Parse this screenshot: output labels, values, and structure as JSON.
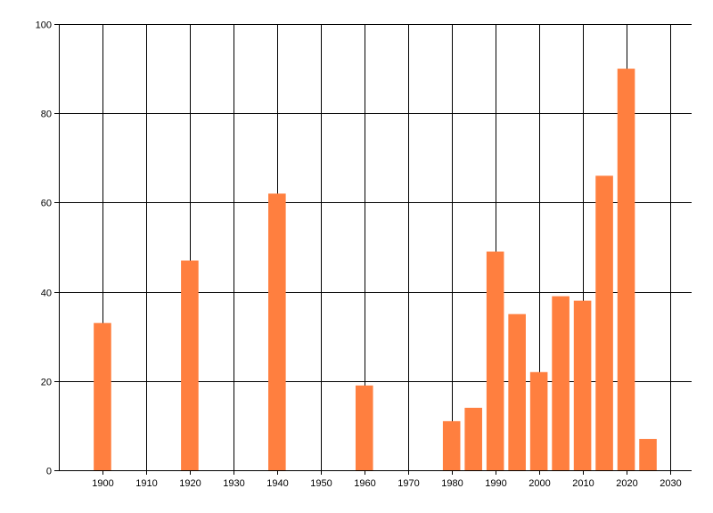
{
  "chart_data": {
    "type": "bar",
    "x": [
      1900,
      1920,
      1940,
      1960,
      1980,
      1985,
      1990,
      1995,
      2000,
      2005,
      2010,
      2015,
      2020,
      2025
    ],
    "values": [
      33,
      47,
      62,
      19,
      11,
      14,
      49,
      35,
      22,
      39,
      38,
      66,
      90,
      7
    ],
    "xlim": [
      1890,
      2035
    ],
    "ylim": [
      0,
      100
    ],
    "xticks": [
      1900,
      1910,
      1920,
      1930,
      1940,
      1950,
      1960,
      1970,
      1980,
      1990,
      2000,
      2010,
      2020,
      2030
    ],
    "yticks": [
      0,
      20,
      40,
      60,
      80,
      100
    ],
    "grid": true,
    "title": "",
    "xlabel": "",
    "ylabel": "",
    "bar_color": "#FF7F3F",
    "grid_color": "#000000"
  }
}
